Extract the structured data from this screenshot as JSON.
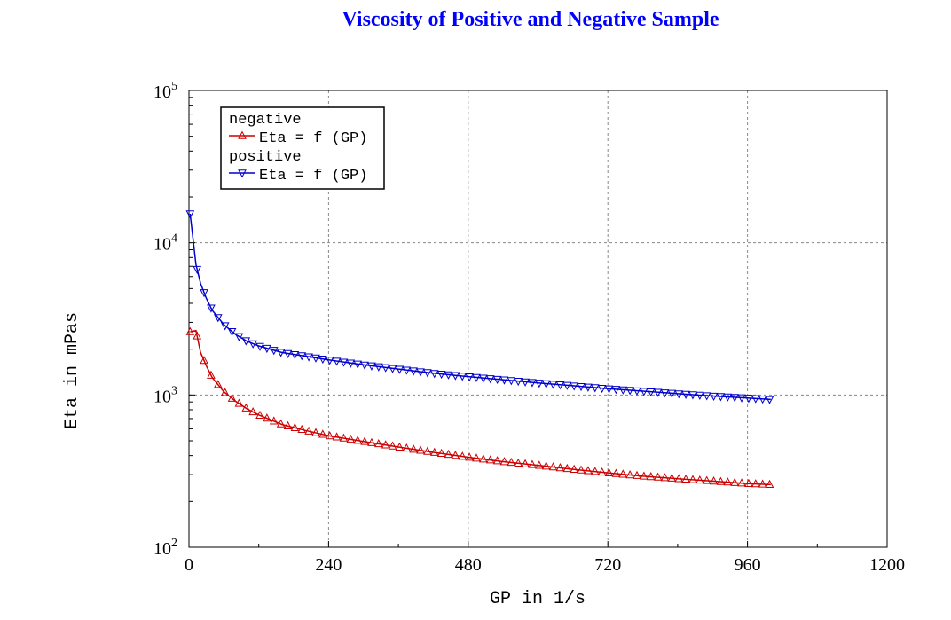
{
  "chart_data": {
    "type": "line",
    "title": "Viscosity of Positive and Negative Sample",
    "title_color": "#0000ff",
    "xlabel": "GP in 1/s",
    "ylabel": "Eta in mPas",
    "xlim": [
      0,
      1200
    ],
    "ylim": [
      100,
      100000
    ],
    "yscale": "log",
    "x_ticks": [
      "0",
      "240",
      "480",
      "720",
      "960",
      "1200"
    ],
    "y_ticks": [
      {
        "base": "10",
        "exp": "2"
      },
      {
        "base": "10",
        "exp": "3"
      },
      {
        "base": "10",
        "exp": "4"
      },
      {
        "base": "10",
        "exp": "5"
      }
    ],
    "grid": true,
    "legend_position": "top-left",
    "series": [
      {
        "group": "negative",
        "name": "Eta = f (GP)",
        "color": "#cc0000",
        "marker": "triangle-up",
        "x": [
          2,
          12,
          20,
          30,
          40,
          60,
          80,
          100,
          120,
          160,
          200,
          240,
          300,
          360,
          420,
          480,
          540,
          600,
          660,
          720,
          780,
          840,
          900,
          960,
          1000
        ],
        "y": [
          2600,
          2650,
          1900,
          1550,
          1300,
          1050,
          910,
          810,
          740,
          640,
          585,
          540,
          495,
          455,
          420,
          390,
          365,
          345,
          325,
          308,
          293,
          282,
          272,
          262,
          258
        ]
      },
      {
        "group": "positive",
        "name": "Eta = f (GP)",
        "color": "#0000cc",
        "marker": "triangle-down",
        "x": [
          2,
          12,
          20,
          30,
          40,
          60,
          80,
          100,
          120,
          160,
          200,
          240,
          300,
          360,
          420,
          480,
          540,
          600,
          660,
          720,
          780,
          840,
          900,
          960,
          1000
        ],
        "y": [
          15500,
          7200,
          5400,
          4300,
          3600,
          2900,
          2500,
          2250,
          2100,
          1900,
          1800,
          1700,
          1580,
          1480,
          1390,
          1320,
          1260,
          1200,
          1150,
          1100,
          1060,
          1020,
          985,
          955,
          935
        ]
      }
    ]
  }
}
